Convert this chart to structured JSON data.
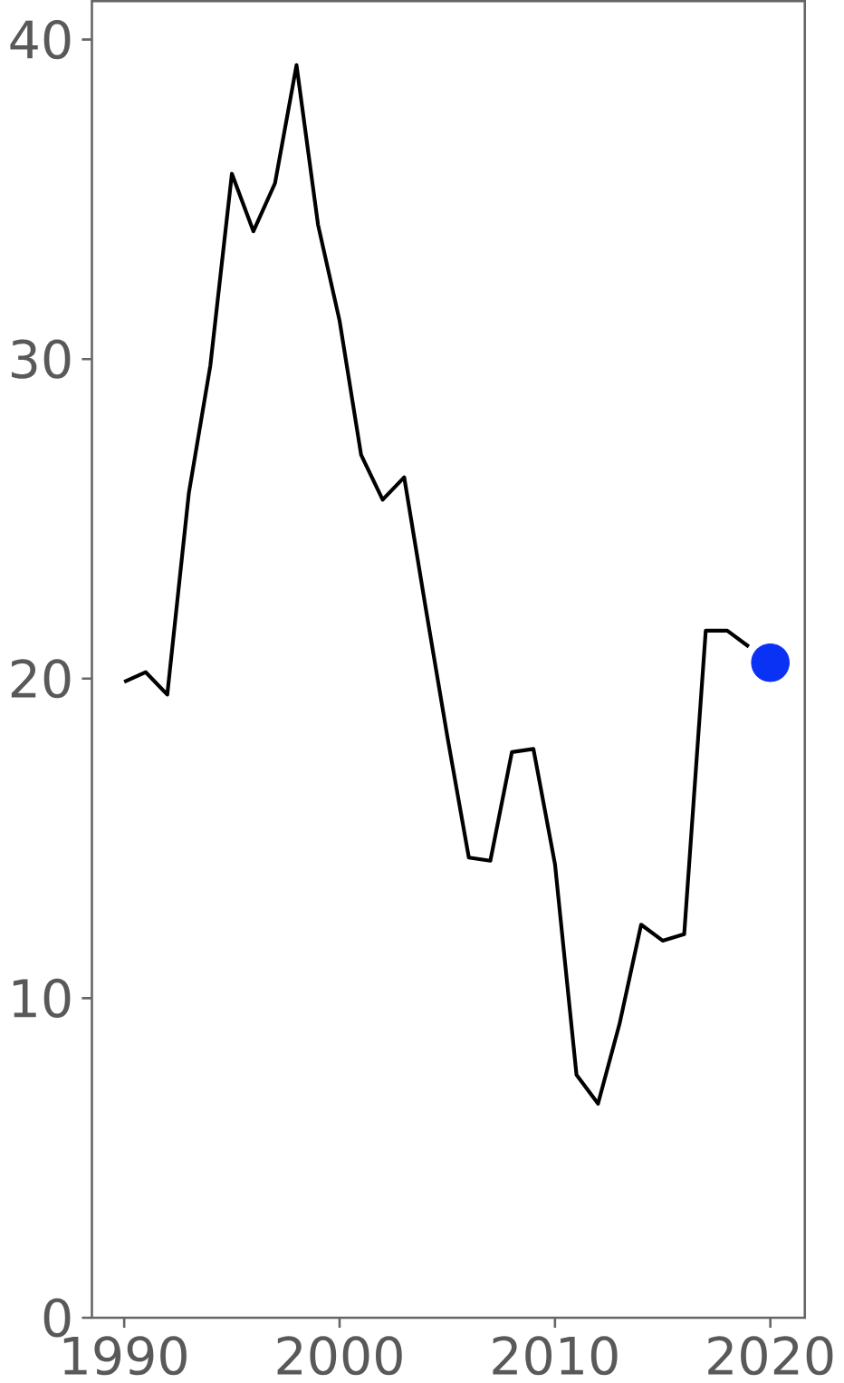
{
  "chart_data": {
    "type": "line",
    "xlim": [
      1988.5,
      2021.6
    ],
    "ylim": [
      0,
      41.2
    ],
    "xticks": [
      1990,
      2000,
      2010,
      2020
    ],
    "yticks": [
      0,
      10,
      20,
      30,
      40
    ],
    "grid": false,
    "series": [
      {
        "color": "#000000",
        "x": [
          1990,
          1991,
          1992,
          1993,
          1994,
          1995,
          1996,
          1997,
          1998,
          1999,
          2000,
          2001,
          2002,
          2003,
          2004,
          2005,
          2006,
          2007,
          2008,
          2009,
          2010,
          2011,
          2012,
          2013,
          2014,
          2015,
          2016,
          2017,
          2018,
          2019
        ],
        "values": [
          19.9,
          20.2,
          19.5,
          25.8,
          29.8,
          35.8,
          34.0,
          35.5,
          39.2,
          34.2,
          31.2,
          27.0,
          25.6,
          26.3,
          22.2,
          18.2,
          14.4,
          14.3,
          17.7,
          17.8,
          14.2,
          7.6,
          6.7,
          9.2,
          12.3,
          11.8,
          12.0,
          21.5,
          21.5,
          21.0
        ]
      },
      {
        "type": "scatter",
        "color": "#0a32f5",
        "x": [
          2020
        ],
        "values": [
          20.5
        ]
      }
    ]
  }
}
